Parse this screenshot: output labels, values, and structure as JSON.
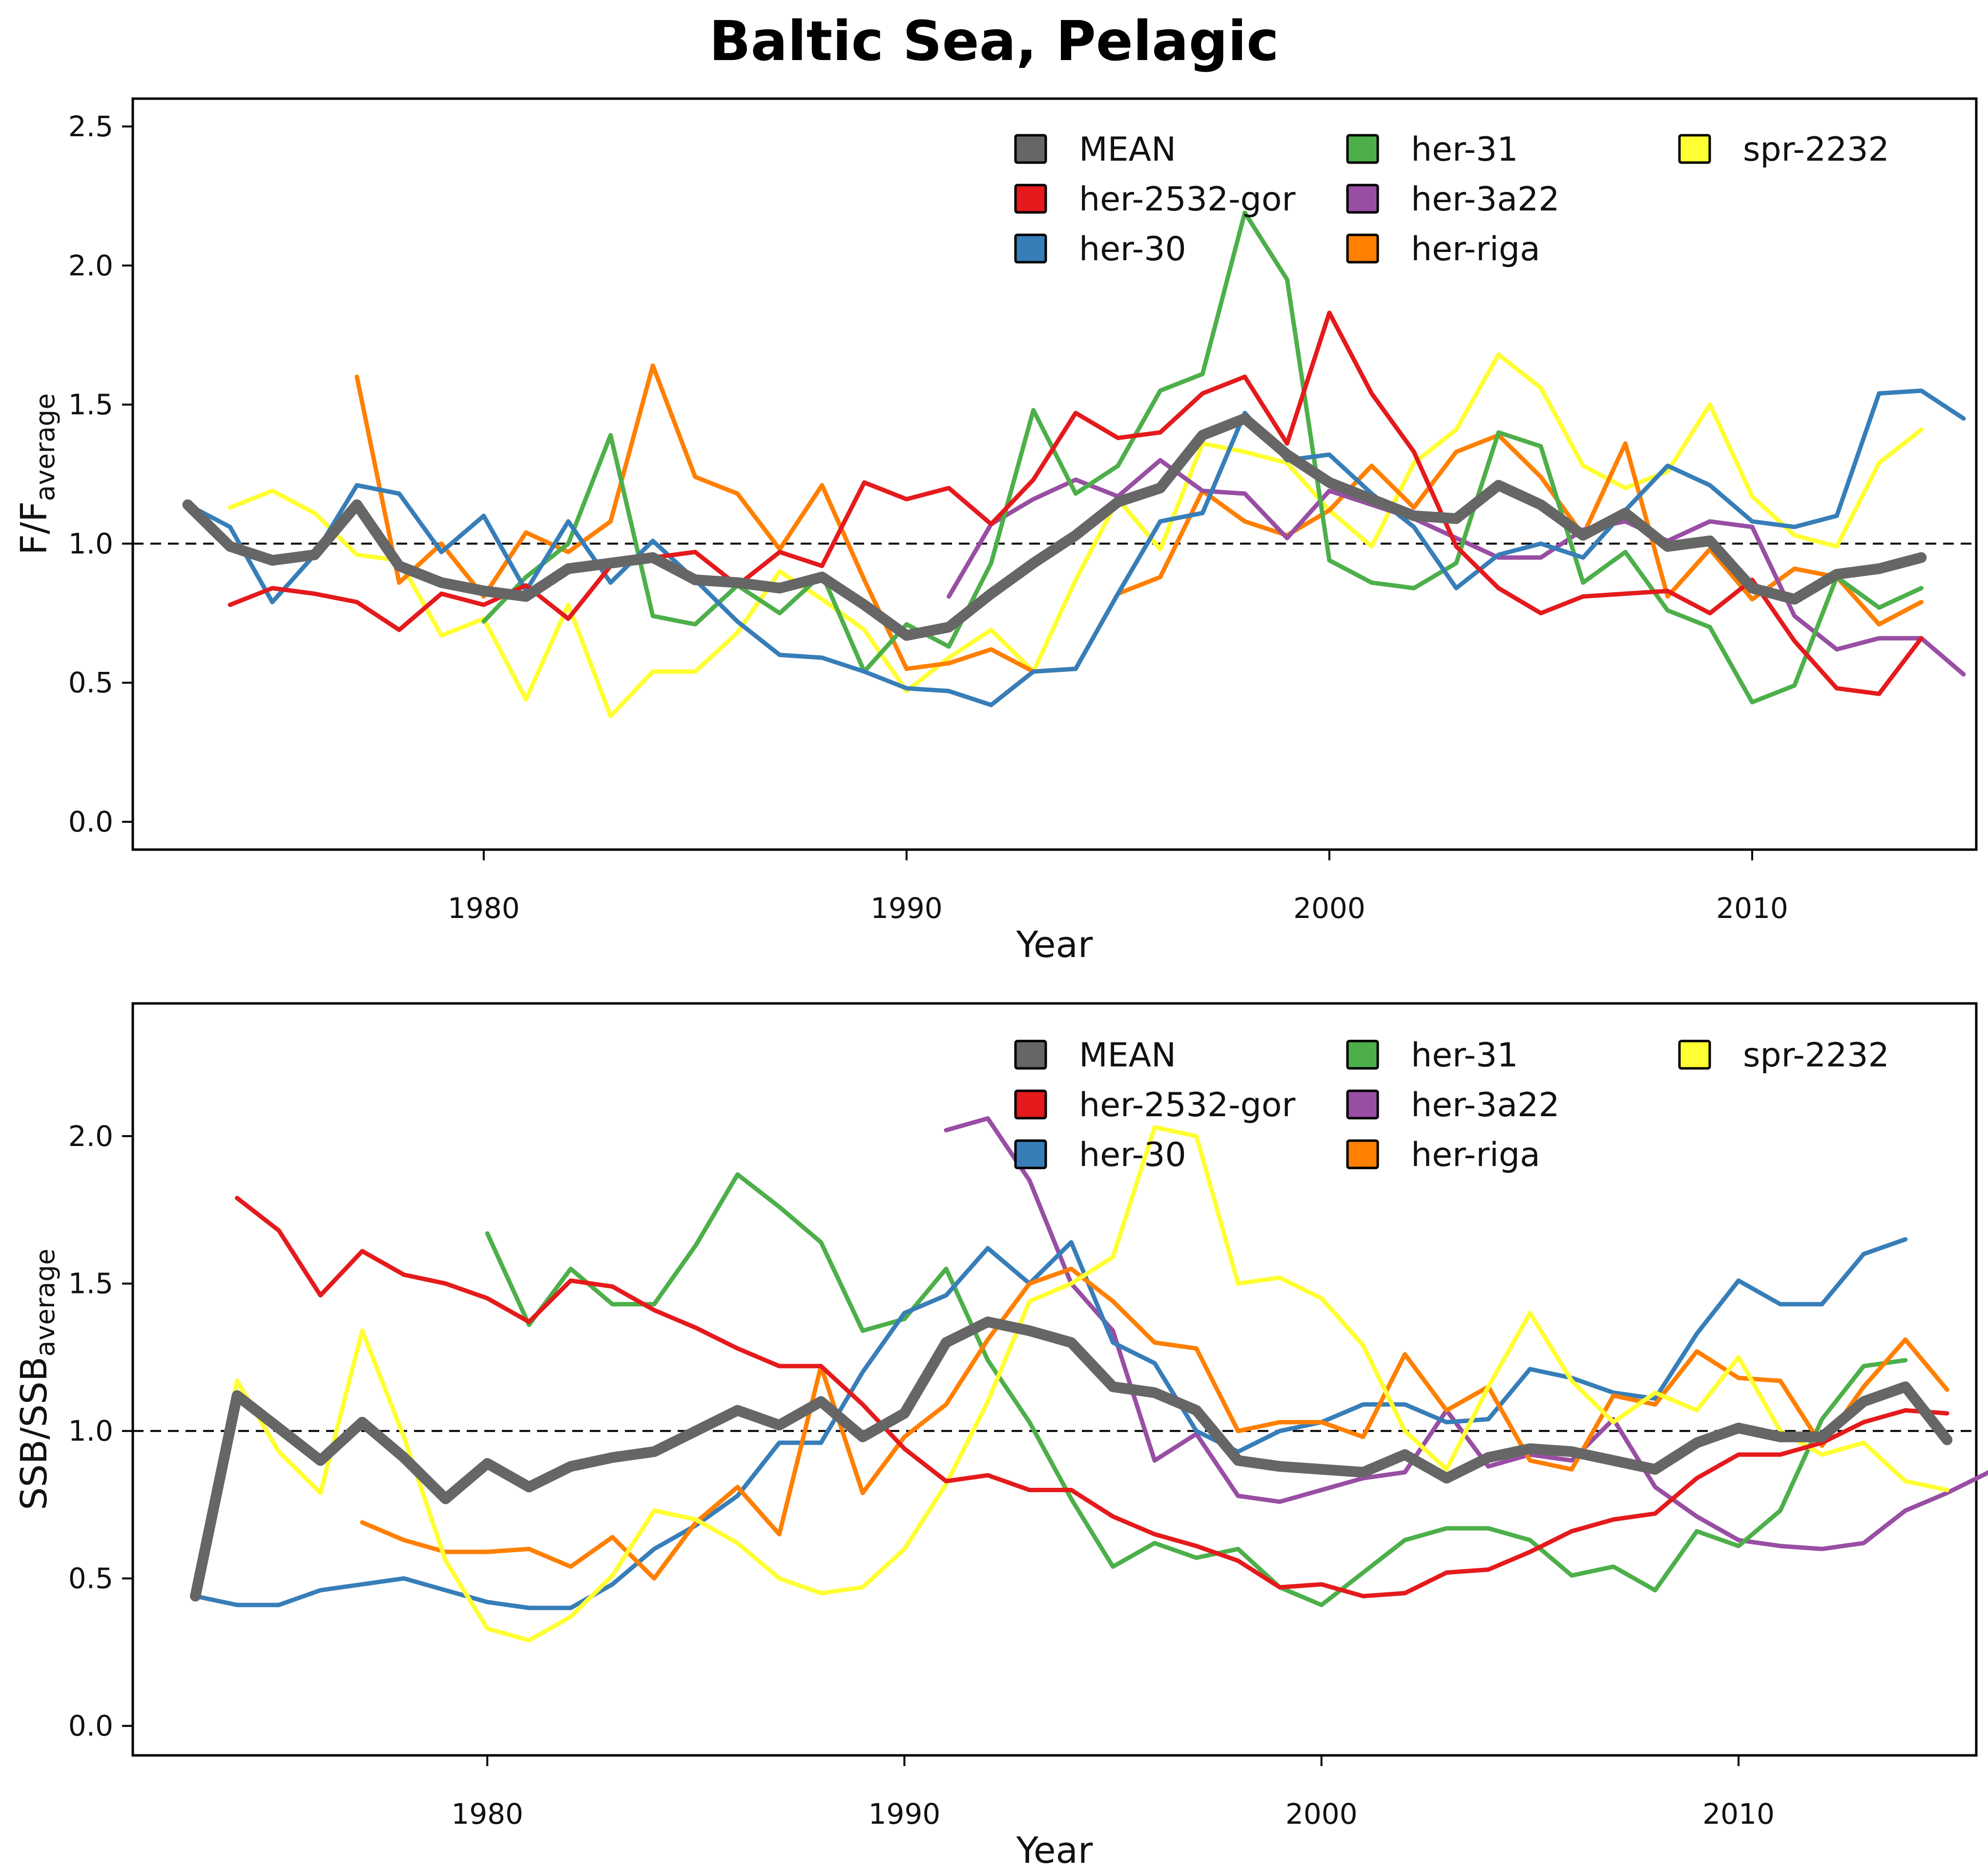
{
  "title": "Baltic Sea, Pelagic",
  "colors": {
    "MEAN": "#666666",
    "her-2532-gor": "#e41a1c",
    "her-30": "#377eb8",
    "her-31": "#4daf4a",
    "her-3a22": "#984ea3",
    "her-riga": "#ff7f00",
    "spr-2232": "#ffff33"
  },
  "legend": {
    "columns": [
      [
        "MEAN",
        "her-2532-gor",
        "her-30"
      ],
      [
        "her-31",
        "her-3a22",
        "her-riga"
      ],
      [
        "spr-2232"
      ]
    ]
  },
  "chart_data": [
    {
      "type": "line",
      "xlabel": "Year",
      "ylabel_main": "F/F",
      "ylabel_sub": "average",
      "xlim": [
        1971.7,
        2015.3
      ],
      "ylim": [
        -0.1,
        2.6
      ],
      "xticks": [
        1980,
        1990,
        2000,
        2010
      ],
      "yticks": [
        0.0,
        0.5,
        1.0,
        1.5,
        2.0,
        2.5
      ],
      "ytick_labels": [
        "0.0",
        "0.5",
        "1.0",
        "1.5",
        "2.0",
        "2.5"
      ],
      "reference_line": 1.0,
      "legend_position": "top-right",
      "grid": false,
      "series": [
        {
          "name": "MEAN",
          "x_start": 1973,
          "values": [
            1.14,
            0.99,
            0.94,
            0.96,
            1.14,
            0.92,
            0.86,
            0.83,
            0.81,
            0.91,
            0.93,
            0.95,
            0.87,
            0.86,
            0.84,
            0.88,
            0.78,
            0.67,
            0.7,
            0.82,
            0.93,
            1.03,
            1.15,
            1.2,
            1.39,
            1.45,
            1.32,
            1.22,
            1.16,
            1.1,
            1.09,
            1.21,
            1.14,
            1.03,
            1.11,
            0.99,
            1.01,
            0.84,
            0.8,
            0.89,
            0.91,
            0.95
          ]
        },
        {
          "name": "her-2532-gor",
          "x_start": 1974,
          "values": [
            0.78,
            0.84,
            0.82,
            0.79,
            0.69,
            0.82,
            0.78,
            0.85,
            0.73,
            0.92,
            0.95,
            0.97,
            0.85,
            0.97,
            0.92,
            1.22,
            1.16,
            1.2,
            1.07,
            1.23,
            1.47,
            1.38,
            1.4,
            1.54,
            1.6,
            1.36,
            1.83,
            1.54,
            1.33,
            0.99,
            0.84,
            0.75,
            0.81,
            0.82,
            0.83,
            0.75,
            0.87,
            0.65,
            0.48,
            0.46,
            0.66
          ]
        },
        {
          "name": "her-30",
          "x_start": 1973,
          "values": [
            1.14,
            1.06,
            0.79,
            0.96,
            1.21,
            1.18,
            0.97,
            1.1,
            0.83,
            1.08,
            0.86,
            1.01,
            0.87,
            0.72,
            0.6,
            0.59,
            0.54,
            0.48,
            0.47,
            0.42,
            0.54,
            0.55,
            0.82,
            1.08,
            1.11,
            1.47,
            1.3,
            1.32,
            1.18,
            1.06,
            0.84,
            0.96,
            1.0,
            0.95,
            1.12,
            1.28,
            1.21,
            1.08,
            1.06,
            1.1,
            1.54,
            1.55,
            1.45
          ]
        },
        {
          "name": "her-31",
          "x_start": 1980,
          "values": [
            0.72,
            0.88,
            1.0,
            1.39,
            0.74,
            0.71,
            0.85,
            0.75,
            0.89,
            0.54,
            0.71,
            0.63,
            0.93,
            1.48,
            1.18,
            1.28,
            1.55,
            1.61,
            2.19,
            1.95,
            0.94,
            0.86,
            0.84,
            0.93,
            1.4,
            1.35,
            0.86,
            0.97,
            0.76,
            0.7,
            0.43,
            0.49,
            0.88,
            0.77,
            0.84
          ]
        },
        {
          "name": "her-3a22",
          "x_start": 1991,
          "values": [
            0.81,
            1.07,
            1.16,
            1.23,
            1.17,
            1.3,
            1.19,
            1.18,
            1.02,
            1.19,
            1.14,
            1.09,
            1.02,
            0.95,
            0.95,
            1.05,
            1.08,
            1.01,
            1.08,
            1.06,
            0.74,
            0.62,
            0.66,
            0.66,
            0.53
          ]
        },
        {
          "name": "her-riga",
          "x_start": 1977,
          "values": [
            1.6,
            0.86,
            1.0,
            0.81,
            1.04,
            0.97,
            1.08,
            1.64,
            1.24,
            1.18,
            0.98,
            1.21,
            0.87,
            0.55,
            0.57,
            0.62,
            0.54,
            0.55,
            0.82,
            0.88,
            1.19,
            1.08,
            1.03,
            1.12,
            1.28,
            1.13,
            1.33,
            1.39,
            1.24,
            1.03,
            1.36,
            0.81,
            0.98,
            0.8,
            0.91,
            0.88,
            0.71,
            0.79
          ]
        },
        {
          "name": "spr-2232",
          "x_start": 1974,
          "values": [
            1.13,
            1.19,
            1.11,
            0.96,
            0.94,
            0.67,
            0.73,
            0.44,
            0.78,
            0.38,
            0.54,
            0.54,
            0.68,
            0.9,
            0.8,
            0.69,
            0.47,
            0.59,
            0.69,
            0.54,
            0.87,
            1.16,
            0.98,
            1.36,
            1.33,
            1.29,
            1.12,
            0.99,
            1.29,
            1.41,
            1.68,
            1.56,
            1.28,
            1.2,
            1.26,
            1.5,
            1.17,
            1.03,
            0.99,
            1.29,
            1.41
          ]
        }
      ]
    },
    {
      "type": "line",
      "xlabel": "Year",
      "ylabel_main": "SSB/SSB",
      "ylabel_sub": "average",
      "xlim": [
        1971.5,
        2015.7
      ],
      "ylim": [
        -0.1,
        2.45
      ],
      "xticks": [
        1980,
        1990,
        2000,
        2010
      ],
      "yticks": [
        0.0,
        0.5,
        1.0,
        1.5,
        2.0
      ],
      "ytick_labels": [
        "0.0",
        "0.5",
        "1.0",
        "1.5",
        "2.0"
      ],
      "reference_line": 1.0,
      "legend_position": "top-right",
      "grid": false,
      "series": [
        {
          "name": "MEAN",
          "x_start": 1973,
          "values": [
            0.44,
            1.12,
            1.01,
            0.9,
            1.03,
            0.91,
            0.77,
            0.89,
            0.81,
            0.88,
            0.91,
            0.93,
            1.0,
            1.07,
            1.02,
            1.1,
            0.98,
            1.06,
            1.3,
            1.37,
            1.34,
            1.3,
            1.15,
            1.13,
            1.07,
            0.9,
            0.88,
            0.87,
            0.86,
            0.92,
            0.84,
            0.91,
            0.94,
            0.93,
            0.9,
            0.87,
            0.96,
            1.01,
            0.98,
            0.98,
            1.1,
            1.15,
            0.97
          ]
        },
        {
          "name": "her-2532-gor",
          "x_start": 1974,
          "values": [
            1.79,
            1.68,
            1.46,
            1.61,
            1.53,
            1.5,
            1.45,
            1.37,
            1.51,
            1.49,
            1.41,
            1.35,
            1.28,
            1.22,
            1.22,
            1.09,
            0.94,
            0.83,
            0.85,
            0.8,
            0.8,
            0.71,
            0.65,
            0.61,
            0.56,
            0.47,
            0.48,
            0.44,
            0.45,
            0.52,
            0.53,
            0.59,
            0.66,
            0.7,
            0.72,
            0.84,
            0.92,
            0.92,
            0.96,
            1.03,
            1.07,
            1.06
          ]
        },
        {
          "name": "her-30",
          "x_start": 1973,
          "values": [
            0.44,
            0.41,
            0.41,
            0.46,
            0.48,
            0.5,
            0.46,
            0.42,
            0.4,
            0.4,
            0.48,
            0.6,
            0.68,
            0.78,
            0.96,
            0.96,
            1.2,
            1.4,
            1.46,
            1.62,
            1.5,
            1.64,
            1.3,
            1.23,
            1.0,
            0.93,
            1.0,
            1.03,
            1.09,
            1.09,
            1.03,
            1.04,
            1.21,
            1.18,
            1.13,
            1.11,
            1.33,
            1.51,
            1.43,
            1.43,
            1.6,
            1.65
          ]
        },
        {
          "name": "her-31",
          "x_start": 1980,
          "values": [
            1.67,
            1.36,
            1.55,
            1.43,
            1.43,
            1.63,
            1.87,
            1.76,
            1.64,
            1.34,
            1.38,
            1.55,
            1.24,
            1.03,
            0.77,
            0.54,
            0.62,
            0.57,
            0.6,
            0.47,
            0.41,
            0.52,
            0.63,
            0.67,
            0.67,
            0.63,
            0.51,
            0.54,
            0.46,
            0.66,
            0.61,
            0.73,
            1.04,
            1.22,
            1.24
          ]
        },
        {
          "name": "her-3a22",
          "x_start": 1991,
          "values": [
            2.02,
            2.06,
            1.85,
            1.5,
            1.34,
            0.9,
            0.99,
            0.78,
            0.76,
            0.8,
            0.84,
            0.86,
            1.07,
            0.88,
            0.92,
            0.9,
            1.04,
            0.81,
            0.71,
            0.63,
            0.61,
            0.6,
            0.62,
            0.73,
            0.79,
            0.86
          ]
        },
        {
          "name": "her-riga",
          "x_start": 1977,
          "values": [
            0.69,
            0.63,
            0.59,
            0.59,
            0.6,
            0.54,
            0.64,
            0.5,
            0.69,
            0.81,
            0.65,
            1.22,
            0.79,
            0.98,
            1.09,
            1.31,
            1.5,
            1.55,
            1.44,
            1.3,
            1.28,
            1.0,
            1.03,
            1.03,
            0.98,
            1.26,
            1.07,
            1.15,
            0.9,
            0.87,
            1.12,
            1.09,
            1.27,
            1.18,
            1.17,
            0.95,
            1.15,
            1.31,
            1.14
          ]
        },
        {
          "name": "spr-2232",
          "x_start": 1973,
          "values": [
            0.44,
            1.17,
            0.93,
            0.79,
            1.34,
            0.98,
            0.56,
            0.33,
            0.29,
            0.37,
            0.51,
            0.73,
            0.7,
            0.62,
            0.5,
            0.45,
            0.47,
            0.6,
            0.82,
            1.1,
            1.44,
            1.5,
            1.59,
            2.03,
            2.0,
            1.5,
            1.52,
            1.45,
            1.29,
            1.0,
            0.87,
            1.15,
            1.4,
            1.17,
            1.03,
            1.13,
            1.07,
            1.25,
            1.0,
            0.92,
            0.96,
            0.83,
            0.8
          ]
        }
      ]
    }
  ]
}
